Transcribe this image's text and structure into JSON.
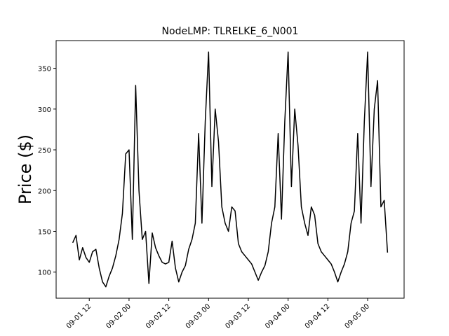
{
  "chart_data": {
    "type": "line",
    "title": "NodeLMP: TLRELKE_6_N001",
    "y_label": "Price ($)",
    "x": [
      "09-01 07",
      "09-01 08",
      "09-01 09",
      "09-01 10",
      "09-01 11",
      "09-01 12",
      "09-01 13",
      "09-01 14",
      "09-01 15",
      "09-01 16",
      "09-01 17",
      "09-01 18",
      "09-01 19",
      "09-01 20",
      "09-01 21",
      "09-01 22",
      "09-01 23",
      "09-02 00",
      "09-02 01",
      "09-02 02",
      "09-02 03",
      "09-02 04",
      "09-02 05",
      "09-02 06",
      "09-02 07",
      "09-02 08",
      "09-02 09",
      "09-02 10",
      "09-02 11",
      "09-02 12",
      "09-02 13",
      "09-02 14",
      "09-02 15",
      "09-02 16",
      "09-02 17",
      "09-02 18",
      "09-02 19",
      "09-02 20",
      "09-02 21",
      "09-02 22",
      "09-02 23",
      "09-03 00",
      "09-03 01",
      "09-03 02",
      "09-03 03",
      "09-03 04",
      "09-03 05",
      "09-03 06",
      "09-03 07",
      "09-03 08",
      "09-03 09",
      "09-03 10",
      "09-03 11",
      "09-03 12",
      "09-03 13",
      "09-03 14",
      "09-03 15",
      "09-03 16",
      "09-03 17",
      "09-03 18",
      "09-03 19",
      "09-03 20",
      "09-03 21",
      "09-03 22",
      "09-03 23",
      "09-04 00",
      "09-04 01",
      "09-04 02",
      "09-04 03",
      "09-04 04",
      "09-04 05",
      "09-04 06",
      "09-04 07",
      "09-04 08",
      "09-04 09",
      "09-04 10",
      "09-04 11",
      "09-04 12",
      "09-04 13",
      "09-04 14",
      "09-04 15",
      "09-04 16",
      "09-04 17",
      "09-04 18",
      "09-04 19",
      "09-04 20",
      "09-04 21",
      "09-04 22",
      "09-04 23",
      "09-05 00",
      "09-05 01",
      "09-05 02",
      "09-05 03",
      "09-05 04",
      "09-05 05",
      "09-05 06"
    ],
    "series": [
      {
        "color": "#000000",
        "values": [
          136,
          145,
          115,
          130,
          118,
          112,
          125,
          128,
          105,
          88,
          82,
          95,
          105,
          120,
          140,
          172,
          245,
          250,
          140,
          329,
          200,
          140,
          150,
          86,
          148,
          130,
          120,
          112,
          110,
          112,
          138,
          105,
          88,
          100,
          108,
          128,
          140,
          160,
          270,
          160,
          285,
          370,
          205,
          300,
          260,
          180,
          160,
          150,
          180,
          175,
          135,
          125,
          120,
          115,
          110,
          100,
          90,
          100,
          108,
          125,
          160,
          180,
          270,
          165,
          285,
          370,
          205,
          300,
          255,
          180,
          160,
          145,
          180,
          170,
          135,
          125,
          120,
          115,
          110,
          100,
          88,
          100,
          110,
          125,
          160,
          175,
          270,
          160,
          285,
          370,
          205,
          300,
          335,
          180,
          188,
          124
        ]
      }
    ],
    "xlim": [
      "09-01 02",
      "09-05 11"
    ],
    "xticks": [
      "09-01 12",
      "09-02 00",
      "09-02 12",
      "09-03 00",
      "09-03 12",
      "09-04 00",
      "09-04 12",
      "09-05 00"
    ],
    "ylim": [
      68,
      384
    ],
    "yticks": [
      100,
      150,
      200,
      250,
      300,
      350
    ]
  }
}
